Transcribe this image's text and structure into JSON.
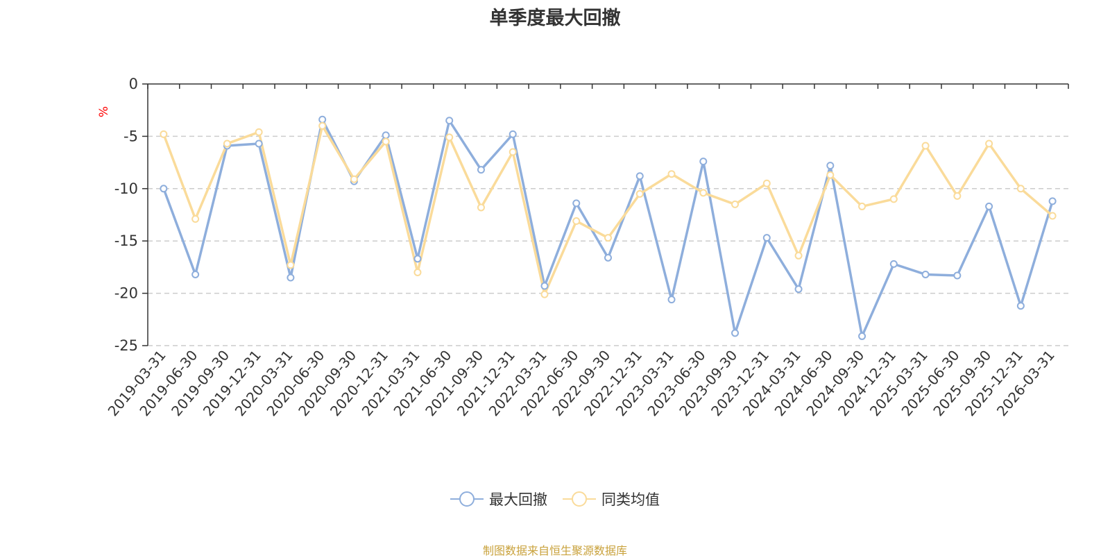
{
  "chart_data": {
    "type": "line",
    "title": "单季度最大回撤",
    "ylabel": "%",
    "ylim": [
      -25,
      0
    ],
    "yticks": [
      0,
      -5,
      -10,
      -15,
      -20,
      -25
    ],
    "grid": true,
    "legend_position": "bottom",
    "categories": [
      "2019-03-31",
      "2019-06-30",
      "2019-09-30",
      "2019-12-31",
      "2020-03-31",
      "2020-06-30",
      "2020-09-30",
      "2020-12-31",
      "2021-03-31",
      "2021-06-30",
      "2021-09-30",
      "2021-12-31",
      "2022-03-31",
      "2022-06-30",
      "2022-09-30",
      "2022-12-31",
      "2023-03-31",
      "2023-06-30",
      "2023-09-30",
      "2023-12-31",
      "2024-03-31",
      "2024-06-30",
      "2024-09-30",
      "2024-12-31",
      "2025-03-31",
      "2025-06-30",
      "2025-09-30",
      "2025-12-31",
      "2026-03-31"
    ],
    "series": [
      {
        "name": "最大回撤",
        "color": "#8eaedc",
        "values": [
          -10.0,
          -18.2,
          -5.9,
          -5.7,
          -18.5,
          -3.4,
          -9.3,
          -4.9,
          -16.7,
          -3.5,
          -8.2,
          -4.8,
          -19.3,
          -11.4,
          -16.6,
          -8.8,
          -20.6,
          -7.4,
          -23.8,
          -14.7,
          -19.6,
          -7.8,
          -24.1,
          -17.2,
          -18.2,
          -18.3,
          -11.7,
          -21.2,
          -11.2
        ]
      },
      {
        "name": "同类均值",
        "color": "#fadb9a",
        "values": [
          -4.8,
          -12.9,
          -5.7,
          -4.6,
          -17.3,
          -4.0,
          -9.1,
          -5.5,
          -18.0,
          -5.1,
          -11.8,
          -6.5,
          -20.1,
          -13.1,
          -14.7,
          -10.5,
          -8.6,
          -10.4,
          -11.5,
          -9.5,
          -16.4,
          -8.7,
          -11.7,
          -11.0,
          -5.9,
          -10.7,
          -5.7,
          -10.0,
          -12.6
        ]
      }
    ],
    "source": "制图数据来自恒生聚源数据库"
  }
}
